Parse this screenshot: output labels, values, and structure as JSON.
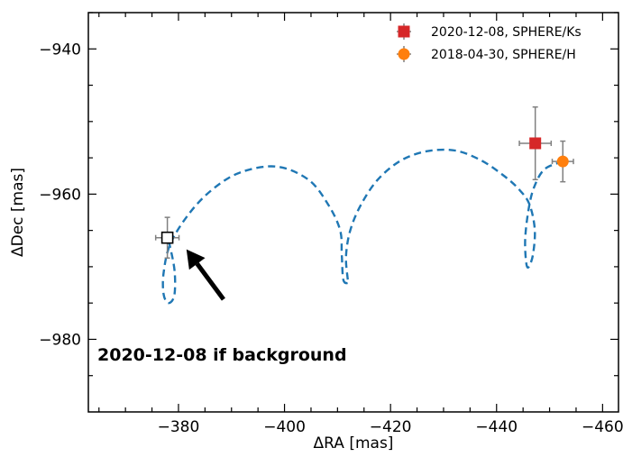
{
  "chart_data": {
    "type": "scatter",
    "xlabel": "ΔRA [mas]",
    "ylabel": "ΔDec [mas]",
    "xlim": [
      -363,
      -463
    ],
    "ylim": [
      -990,
      -935
    ],
    "x_inverted": true,
    "xticks": [
      -380,
      -400,
      -420,
      -440,
      -460
    ],
    "xtick_labels": [
      "−380",
      "−400",
      "−420",
      "−440",
      "−460"
    ],
    "yticks": [
      -940,
      -960,
      -980
    ],
    "ytick_labels": [
      "−940",
      "−960",
      "−980"
    ],
    "minor_x_step": 5,
    "minor_y_step": 5,
    "grid": false,
    "legend_position": "top-right",
    "series": [
      {
        "name": "2020-12-08, SPHERE/Ks",
        "marker": "square",
        "color": "#d62728",
        "points": [
          {
            "x": -447.3,
            "y": -953.0,
            "xerr": 3.0,
            "yerr": 5.0
          }
        ]
      },
      {
        "name": "2018-04-30, SPHERE/H",
        "marker": "circle",
        "color": "#ff7f0e",
        "points": [
          {
            "x": -452.5,
            "y": -955.5,
            "xerr": 2.0,
            "yerr": 2.8
          }
        ]
      },
      {
        "marker": "open-square",
        "color": "#000000",
        "points": [
          {
            "x": -377.9,
            "y": -966.0,
            "xerr": 2.2,
            "yerr": 2.8
          }
        ]
      }
    ],
    "track": {
      "style": "dashed",
      "color": "#1f77b4",
      "points": [
        [
          -452.5,
          -955.5
        ],
        [
          -449,
          -956.6
        ],
        [
          -447,
          -959.2
        ],
        [
          -446,
          -962.3
        ],
        [
          -445.4,
          -966.2
        ],
        [
          -445.6,
          -969.5
        ],
        [
          -446.1,
          -970.0
        ],
        [
          -446.9,
          -968.2
        ],
        [
          -447.2,
          -964.8
        ],
        [
          -446.2,
          -961.4
        ],
        [
          -444.3,
          -959.4
        ],
        [
          -441.6,
          -957.6
        ],
        [
          -437.2,
          -955.4
        ],
        [
          -432.2,
          -954.0
        ],
        [
          -426.8,
          -954.1
        ],
        [
          -421.9,
          -955.4
        ],
        [
          -417.6,
          -958.0
        ],
        [
          -414.4,
          -961.5
        ],
        [
          -412.4,
          -965.0
        ],
        [
          -411.6,
          -968.5
        ],
        [
          -411.9,
          -971.5
        ],
        [
          -412.1,
          -972.2
        ],
        [
          -411.1,
          -971.8
        ],
        [
          -410.8,
          -968.4
        ],
        [
          -410.5,
          -965.0
        ],
        [
          -408.2,
          -961.4
        ],
        [
          -404.5,
          -958.0
        ],
        [
          -398.5,
          -956.2
        ],
        [
          -391.7,
          -957.0
        ],
        [
          -386.5,
          -959.3
        ],
        [
          -382.1,
          -962.6
        ],
        [
          -378.5,
          -966.8
        ],
        [
          -377.2,
          -970.8
        ],
        [
          -377.2,
          -973.8
        ],
        [
          -378.1,
          -975.0
        ],
        [
          -379.2,
          -974.0
        ],
        [
          -379.3,
          -970.8
        ],
        [
          -378.5,
          -967.5
        ],
        [
          -377.9,
          -966.0
        ]
      ]
    },
    "annotation": {
      "text": "2020-12-08 if background",
      "arrow_from": [
        -388.5,
        -974.5
      ],
      "arrow_to": [
        -381.5,
        -967.6
      ]
    }
  }
}
